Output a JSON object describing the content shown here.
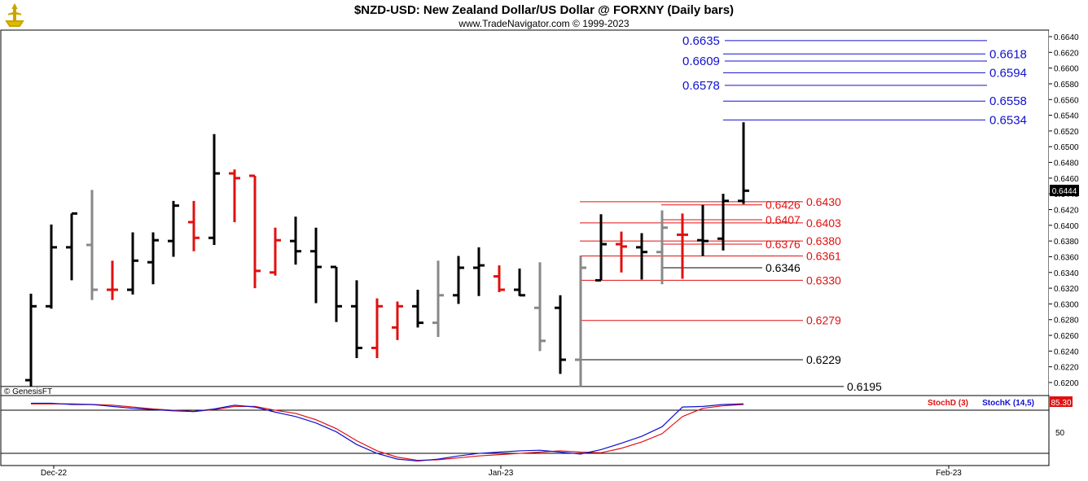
{
  "header": {
    "title": "$NZD-USD:  New Zealand Dollar/US Dollar @ FORXNY  (Daily bars)",
    "subtitle": "www.TradeNavigator.com © 1999-2023",
    "copyright": "© GenesisFT"
  },
  "colors": {
    "up": "#000000",
    "down": "#e01010",
    "neutral": "#888888",
    "blue_level": "#1010d0",
    "red_level": "#e01010",
    "stochK": "#1010d0",
    "stochD": "#e01010",
    "price_box": "#000000",
    "stoch_box": "#e01010"
  },
  "chart_data": {
    "type": "ohlc",
    "x_labels": [
      "Dec-22",
      "Jan-23",
      "Feb-23"
    ],
    "y_ticks": [
      "0.6640",
      "0.6620",
      "0.6600",
      "0.6580",
      "0.6560",
      "0.6540",
      "0.6520",
      "0.6500",
      "0.6480",
      "0.6460",
      "0.6440",
      "0.6420",
      "0.6400",
      "0.6380",
      "0.6360",
      "0.6340",
      "0.6320",
      "0.6300",
      "0.6280",
      "0.6260",
      "0.6240",
      "0.6220",
      "0.6200"
    ],
    "ylim": [
      0.619,
      0.6645
    ],
    "last_price": "0.6444",
    "bars": [
      {
        "o": 0.6203,
        "h": 0.6313,
        "l": 0.6195,
        "c": 0.6297,
        "k": "up"
      },
      {
        "o": 0.6297,
        "h": 0.6401,
        "l": 0.6294,
        "c": 0.6372,
        "k": "up"
      },
      {
        "o": 0.6372,
        "h": 0.6415,
        "l": 0.633,
        "c": 0.6415,
        "k": "up"
      },
      {
        "o": 0.6375,
        "h": 0.6445,
        "l": 0.6305,
        "c": 0.6318,
        "k": "neutral"
      },
      {
        "o": 0.6318,
        "h": 0.6355,
        "l": 0.6305,
        "c": 0.6318,
        "k": "down"
      },
      {
        "o": 0.6318,
        "h": 0.6391,
        "l": 0.6312,
        "c": 0.6355,
        "k": "up"
      },
      {
        "o": 0.6353,
        "h": 0.6391,
        "l": 0.6325,
        "c": 0.6381,
        "k": "up"
      },
      {
        "o": 0.638,
        "h": 0.6431,
        "l": 0.636,
        "c": 0.6425,
        "k": "up"
      },
      {
        "o": 0.6404,
        "h": 0.6431,
        "l": 0.6367,
        "c": 0.6384,
        "k": "down"
      },
      {
        "o": 0.6384,
        "h": 0.6516,
        "l": 0.6375,
        "c": 0.6466,
        "k": "up"
      },
      {
        "o": 0.6466,
        "h": 0.6471,
        "l": 0.6404,
        "c": 0.646,
        "k": "down"
      },
      {
        "o": 0.6463,
        "h": 0.6463,
        "l": 0.632,
        "c": 0.6342,
        "k": "down"
      },
      {
        "o": 0.634,
        "h": 0.6397,
        "l": 0.6336,
        "c": 0.6381,
        "k": "down"
      },
      {
        "o": 0.638,
        "h": 0.6411,
        "l": 0.635,
        "c": 0.6367,
        "k": "up"
      },
      {
        "o": 0.6367,
        "h": 0.6397,
        "l": 0.6301,
        "c": 0.6347,
        "k": "up"
      },
      {
        "o": 0.6347,
        "h": 0.6347,
        "l": 0.6277,
        "c": 0.6297,
        "k": "up"
      },
      {
        "o": 0.6297,
        "h": 0.633,
        "l": 0.6231,
        "c": 0.6244,
        "k": "up"
      },
      {
        "o": 0.6244,
        "h": 0.6307,
        "l": 0.6231,
        "c": 0.6297,
        "k": "down"
      },
      {
        "o": 0.627,
        "h": 0.6303,
        "l": 0.6254,
        "c": 0.6297,
        "k": "down"
      },
      {
        "o": 0.6297,
        "h": 0.6318,
        "l": 0.627,
        "c": 0.6276,
        "k": "up"
      },
      {
        "o": 0.6276,
        "h": 0.6355,
        "l": 0.6258,
        "c": 0.6311,
        "k": "neutral"
      },
      {
        "o": 0.6311,
        "h": 0.6361,
        "l": 0.63,
        "c": 0.6346,
        "k": "up"
      },
      {
        "o": 0.6346,
        "h": 0.6372,
        "l": 0.631,
        "c": 0.6349,
        "k": "up"
      },
      {
        "o": 0.6335,
        "h": 0.6349,
        "l": 0.6315,
        "c": 0.6318,
        "k": "down"
      },
      {
        "o": 0.6318,
        "h": 0.6345,
        "l": 0.631,
        "c": 0.6311,
        "k": "up"
      },
      {
        "o": 0.6295,
        "h": 0.6353,
        "l": 0.624,
        "c": 0.6253,
        "k": "neutral"
      },
      {
        "o": 0.6295,
        "h": 0.6311,
        "l": 0.6211,
        "c": 0.6229,
        "k": "up"
      },
      {
        "o": 0.6229,
        "h": 0.6361,
        "l": 0.6195,
        "c": 0.6346,
        "k": "neutral"
      },
      {
        "o": 0.633,
        "h": 0.6414,
        "l": 0.633,
        "c": 0.6376,
        "k": "up"
      },
      {
        "o": 0.6376,
        "h": 0.6392,
        "l": 0.634,
        "c": 0.6373,
        "k": "down"
      },
      {
        "o": 0.6372,
        "h": 0.639,
        "l": 0.6331,
        "c": 0.6366,
        "k": "up"
      },
      {
        "o": 0.6366,
        "h": 0.6419,
        "l": 0.6325,
        "c": 0.6397,
        "k": "neutral"
      },
      {
        "o": 0.6388,
        "h": 0.6415,
        "l": 0.6332,
        "c": 0.6388,
        "k": "down"
      },
      {
        "o": 0.6381,
        "h": 0.6426,
        "l": 0.6361,
        "c": 0.638,
        "k": "up"
      },
      {
        "o": 0.6383,
        "h": 0.644,
        "l": 0.6368,
        "c": 0.6431,
        "k": "up"
      },
      {
        "o": 0.6431,
        "h": 0.6531,
        "l": 0.6427,
        "c": 0.6444,
        "k": "up"
      }
    ],
    "levels": {
      "blue_left": [
        "0.6635",
        "0.6609",
        "0.6578"
      ],
      "blue_right": [
        "0.6618",
        "0.6594",
        "0.6558",
        "0.6534"
      ],
      "red": [
        "0.6430",
        "0.6426",
        "0.6407",
        "0.6403",
        "0.6380",
        "0.6376",
        "0.6361",
        "0.6330",
        "0.6279"
      ],
      "black": [
        "0.6346",
        "0.6229",
        "0.6195"
      ]
    },
    "stochastic": {
      "label_d": "StochD (3)",
      "label_k": "StochK (14,5)",
      "value": "85.30",
      "tick": "50",
      "k": [
        93,
        93,
        91,
        91,
        88,
        85,
        83,
        81,
        80,
        84,
        90,
        87,
        79,
        72,
        62,
        48,
        28,
        14,
        5,
        2,
        5,
        10,
        14,
        16,
        18,
        19,
        16,
        13,
        20,
        30,
        41,
        56,
        87,
        88,
        91,
        92
      ],
      "d": [
        92,
        92,
        92,
        91,
        90,
        87,
        84,
        82,
        80,
        83,
        88,
        88,
        82,
        77,
        67,
        53,
        34,
        18,
        8,
        3,
        4,
        7,
        10,
        12,
        14,
        16,
        18,
        16,
        15,
        22,
        32,
        45,
        72,
        85,
        89,
        91
      ]
    }
  }
}
